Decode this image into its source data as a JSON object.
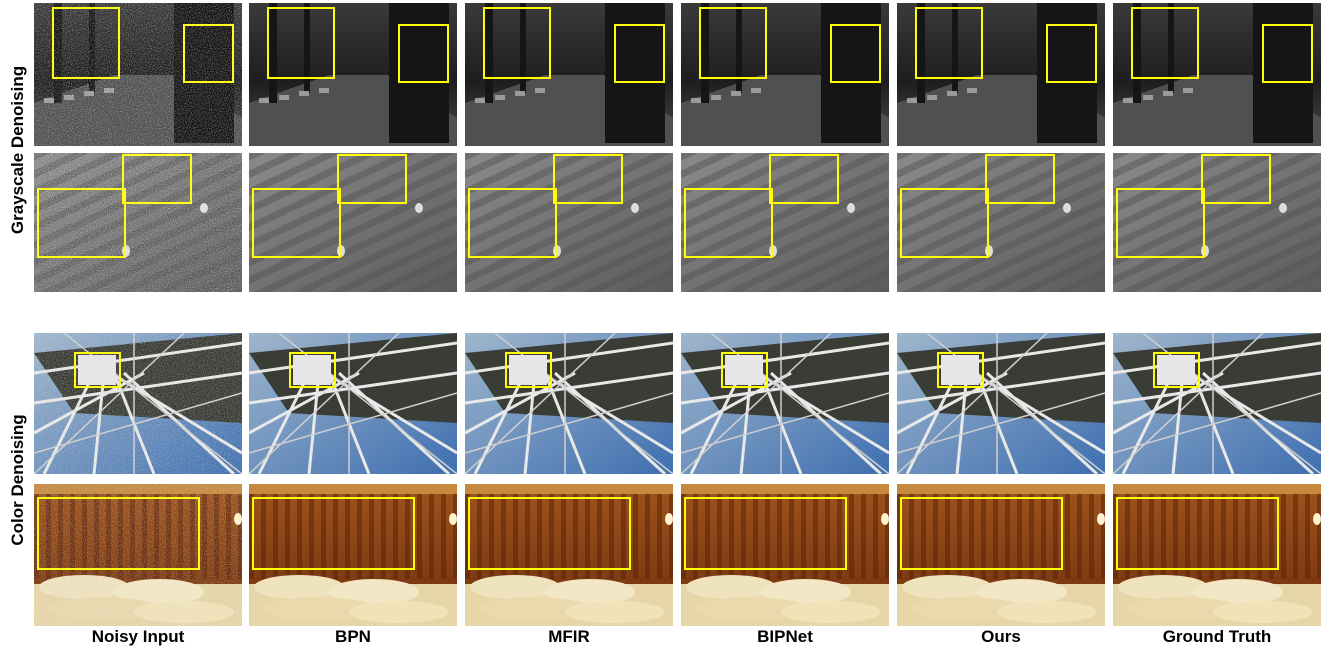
{
  "row_labels": [
    "Grayscale Denoising",
    "Color Denoising"
  ],
  "column_labels": [
    "Noisy Input",
    "BPN",
    "MFIR",
    "BIPNet",
    "Ours",
    "Ground Truth"
  ]
}
